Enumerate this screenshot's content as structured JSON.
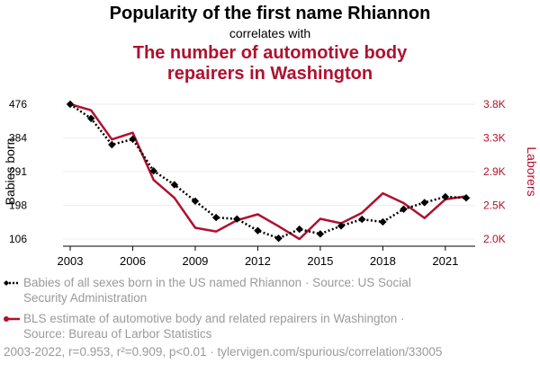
{
  "title": "Popularity of the first name Rhiannon",
  "subtitle": "correlates with",
  "title2_line1": "The number of automotive body",
  "title2_line2": "repairers in Washington",
  "colors": {
    "series1": "#000000",
    "series2": "#b0102f",
    "muted": "#9a9a9a"
  },
  "chart_data": {
    "type": "line",
    "x": [
      2003,
      2004,
      2005,
      2006,
      2007,
      2008,
      2009,
      2010,
      2011,
      2012,
      2013,
      2014,
      2015,
      2016,
      2017,
      2018,
      2019,
      2020,
      2021,
      2022
    ],
    "xticks": [
      2003,
      2006,
      2009,
      2012,
      2015,
      2018,
      2021
    ],
    "xticklabels": [
      "2003",
      "2006",
      "2009",
      "2012",
      "2015",
      "2018",
      "2021"
    ],
    "series": [
      {
        "name": "Babies of all sexes born in the US named Rhiannon",
        "axis": "left",
        "style": "dotted-diamond",
        "values": [
          476,
          437,
          365,
          380,
          293,
          255,
          210,
          165,
          161,
          129,
          108,
          133,
          120,
          142,
          160,
          153,
          188,
          206,
          222,
          219
        ]
      },
      {
        "name": "BLS estimate of automotive body and related repairers in Washington",
        "axis": "right",
        "style": "solid",
        "values": [
          3800,
          3720,
          3330,
          3420,
          2790,
          2550,
          2150,
          2100,
          2250,
          2330,
          2170,
          2000,
          2270,
          2210,
          2350,
          2610,
          2480,
          2280,
          2530,
          2570
        ]
      }
    ],
    "ylabel_left": "Babies born",
    "ylabel_right": "Laborers",
    "ylim_left": [
      106,
      476
    ],
    "ylim_right": [
      2000,
      3800
    ],
    "yticks_left": [
      "476",
      "384",
      "291",
      "198",
      "106"
    ],
    "yticks_right": [
      "3.8K",
      "3.3K",
      "2.9K",
      "2.5K",
      "2.0K"
    ],
    "legend": [
      {
        "line1": "Babies of all sexes born in the US named Rhiannon · Source: US Social",
        "line2": "Security Administration"
      },
      {
        "line1": "BLS estimate of automotive body and related repairers in Washington ·",
        "line2": "Source: Bureau of Larbor Statistics"
      }
    ],
    "footer": "2003-2022, r=0.953, r²=0.909, p<0.01 · tylervigen.com/spurious/correlation/33005"
  }
}
